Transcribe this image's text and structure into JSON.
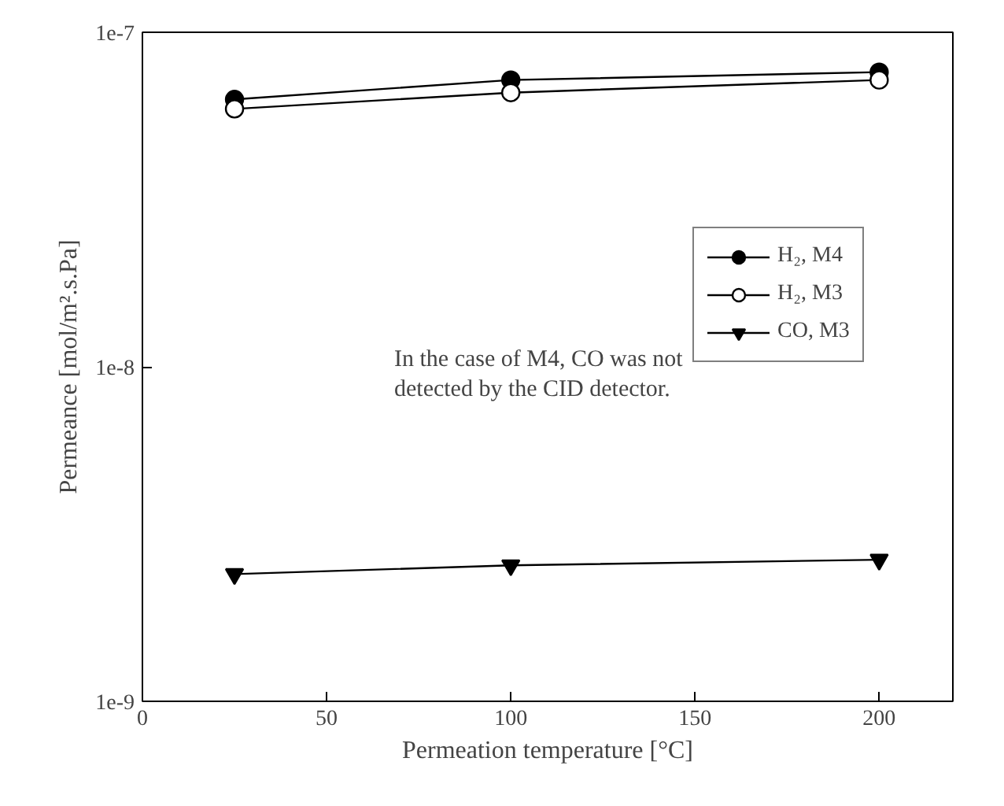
{
  "chart_data": {
    "type": "line",
    "xlabel": "Permeation temperature [°C]",
    "ylabel": "Permeance [mol/m².s.Pa]",
    "x": [
      25,
      100,
      200
    ],
    "series": [
      {
        "name": "H₂, M4",
        "color": "#000000",
        "marker": "circle",
        "values": [
          6.3e-08,
          7.2e-08,
          7.6e-08
        ]
      },
      {
        "name": "H₂, M3",
        "color": "#ffffff",
        "marker": "circle",
        "values": [
          5.9e-08,
          6.6e-08,
          7.2e-08
        ]
      },
      {
        "name": "CO, M3",
        "color": "#000000",
        "marker": "triangle",
        "values": [
          2.4e-09,
          2.55e-09,
          2.65e-09
        ]
      }
    ],
    "xlim": [
      0,
      220
    ],
    "xticks": [
      0,
      50,
      100,
      150,
      200
    ],
    "ylim": [
      1e-09,
      1e-07
    ],
    "yticks": [
      {
        "value": 1e-09,
        "label": "1e-9"
      },
      {
        "value": 1e-08,
        "label": "1e-8"
      },
      {
        "value": 1e-07,
        "label": "1e-7"
      }
    ],
    "log": "y",
    "grid": false,
    "legend": "top right",
    "line_style": "solid",
    "annotations": [
      "In the case of M4, CO was not\ndetected by the CID detector."
    ]
  }
}
